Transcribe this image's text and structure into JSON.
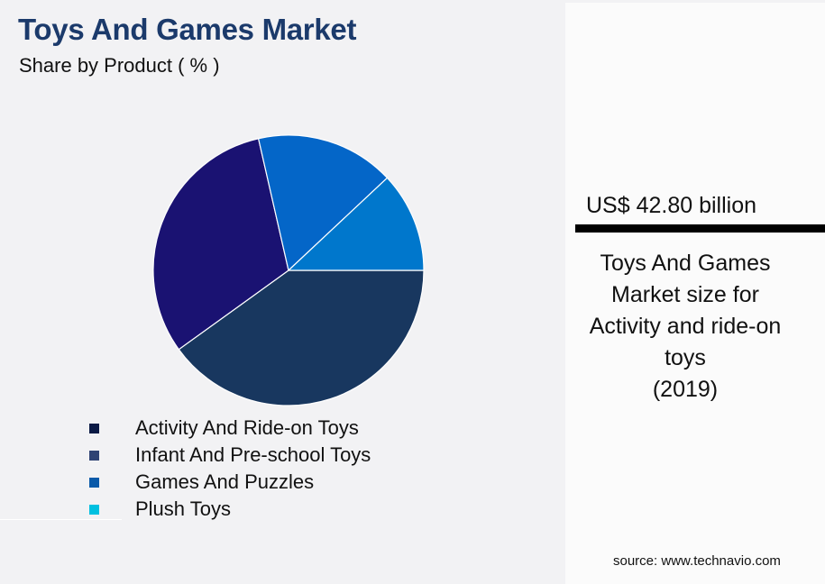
{
  "header": {
    "title": "Toys And Games Market",
    "subtitle": "Share by Product ( % )"
  },
  "chart_data": {
    "type": "pie",
    "title": "Toys And Games Market",
    "subtitle": "Share by Product ( % )",
    "categories": [
      "Activity And Ride-on Toys",
      "Infant And Pre-school Toys",
      "Games And Puzzles",
      "Plush Toys"
    ],
    "values": [
      40.1,
      31.4,
      16.6,
      12.0
    ],
    "slice_colors": [
      "#18375f",
      "#1a1272",
      "#0466c8",
      "#0077cc"
    ],
    "legend_colors": [
      "#0b1a45",
      "#2f4374",
      "#0a5aa9",
      "#00c0e0"
    ],
    "legend_position": "bottom-left",
    "start_angle_deg": 0,
    "direction": "clockwise"
  },
  "legend": {
    "items": [
      {
        "label": "Activity And Ride-on Toys",
        "color": "#0b1a45"
      },
      {
        "label": "Infant And Pre-school Toys",
        "color": "#2f4374"
      },
      {
        "label": "Games And Puzzles",
        "color": "#0a5aa9"
      },
      {
        "label": "Plush Toys",
        "color": "#00c0e0"
      }
    ]
  },
  "panel": {
    "value": "US$ 42.80 billion",
    "desc_lines": [
      "Toys And Games",
      "Market size for",
      "Activity and ride-on",
      "toys",
      "(2019)"
    ],
    "source": "source: www.technavio.com"
  }
}
